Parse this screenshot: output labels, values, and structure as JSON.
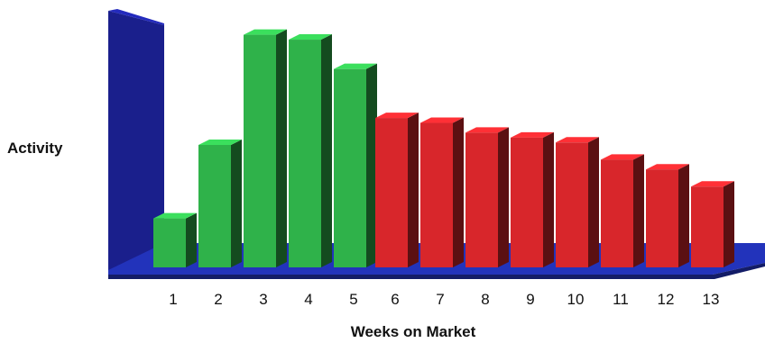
{
  "chart_data": {
    "type": "bar",
    "title": "",
    "xlabel": "Weeks on Market",
    "ylabel": "Activity",
    "categories": [
      "1",
      "2",
      "3",
      "4",
      "5",
      "6",
      "7",
      "8",
      "9",
      "10",
      "11",
      "12",
      "13"
    ],
    "values": [
      20,
      50,
      95,
      93,
      81,
      61,
      59,
      55,
      53,
      51,
      44,
      40,
      33
    ],
    "ylim": [
      0,
      100
    ],
    "grid": false,
    "legend": "none",
    "bar_colors": [
      "#2fb24a",
      "#2fb24a",
      "#2fb24a",
      "#2fb24a",
      "#2fb24a",
      "#d8262b",
      "#d8262b",
      "#d8262b",
      "#d8262b",
      "#d8262b",
      "#d8262b",
      "#d8262b",
      "#d8262b"
    ],
    "wall_color": "#1a1f8c",
    "floor_color": "#2233bb"
  }
}
